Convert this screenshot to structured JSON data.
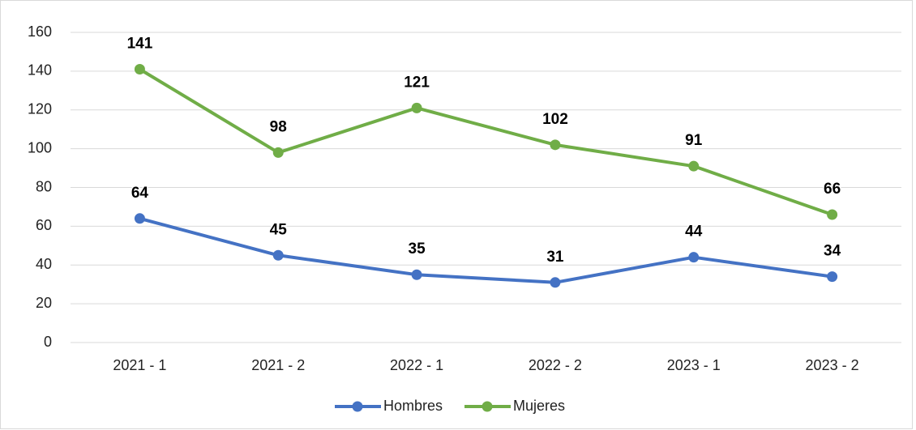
{
  "chart_data": {
    "type": "line",
    "categories": [
      "2021 - 1",
      "2021 - 2",
      "2022 - 1",
      "2022 - 2",
      "2023 - 1",
      "2023 - 2"
    ],
    "series": [
      {
        "name": "Hombres",
        "color": "#4472c4",
        "values": [
          64,
          45,
          35,
          31,
          44,
          34
        ]
      },
      {
        "name": "Mujeres",
        "color": "#70ad47",
        "values": [
          141,
          98,
          121,
          102,
          91,
          66
        ]
      }
    ],
    "ylim": [
      0,
      160
    ],
    "yticks": [
      0,
      20,
      40,
      60,
      80,
      100,
      120,
      140,
      160
    ],
    "grid": true,
    "legend": "bottom"
  }
}
